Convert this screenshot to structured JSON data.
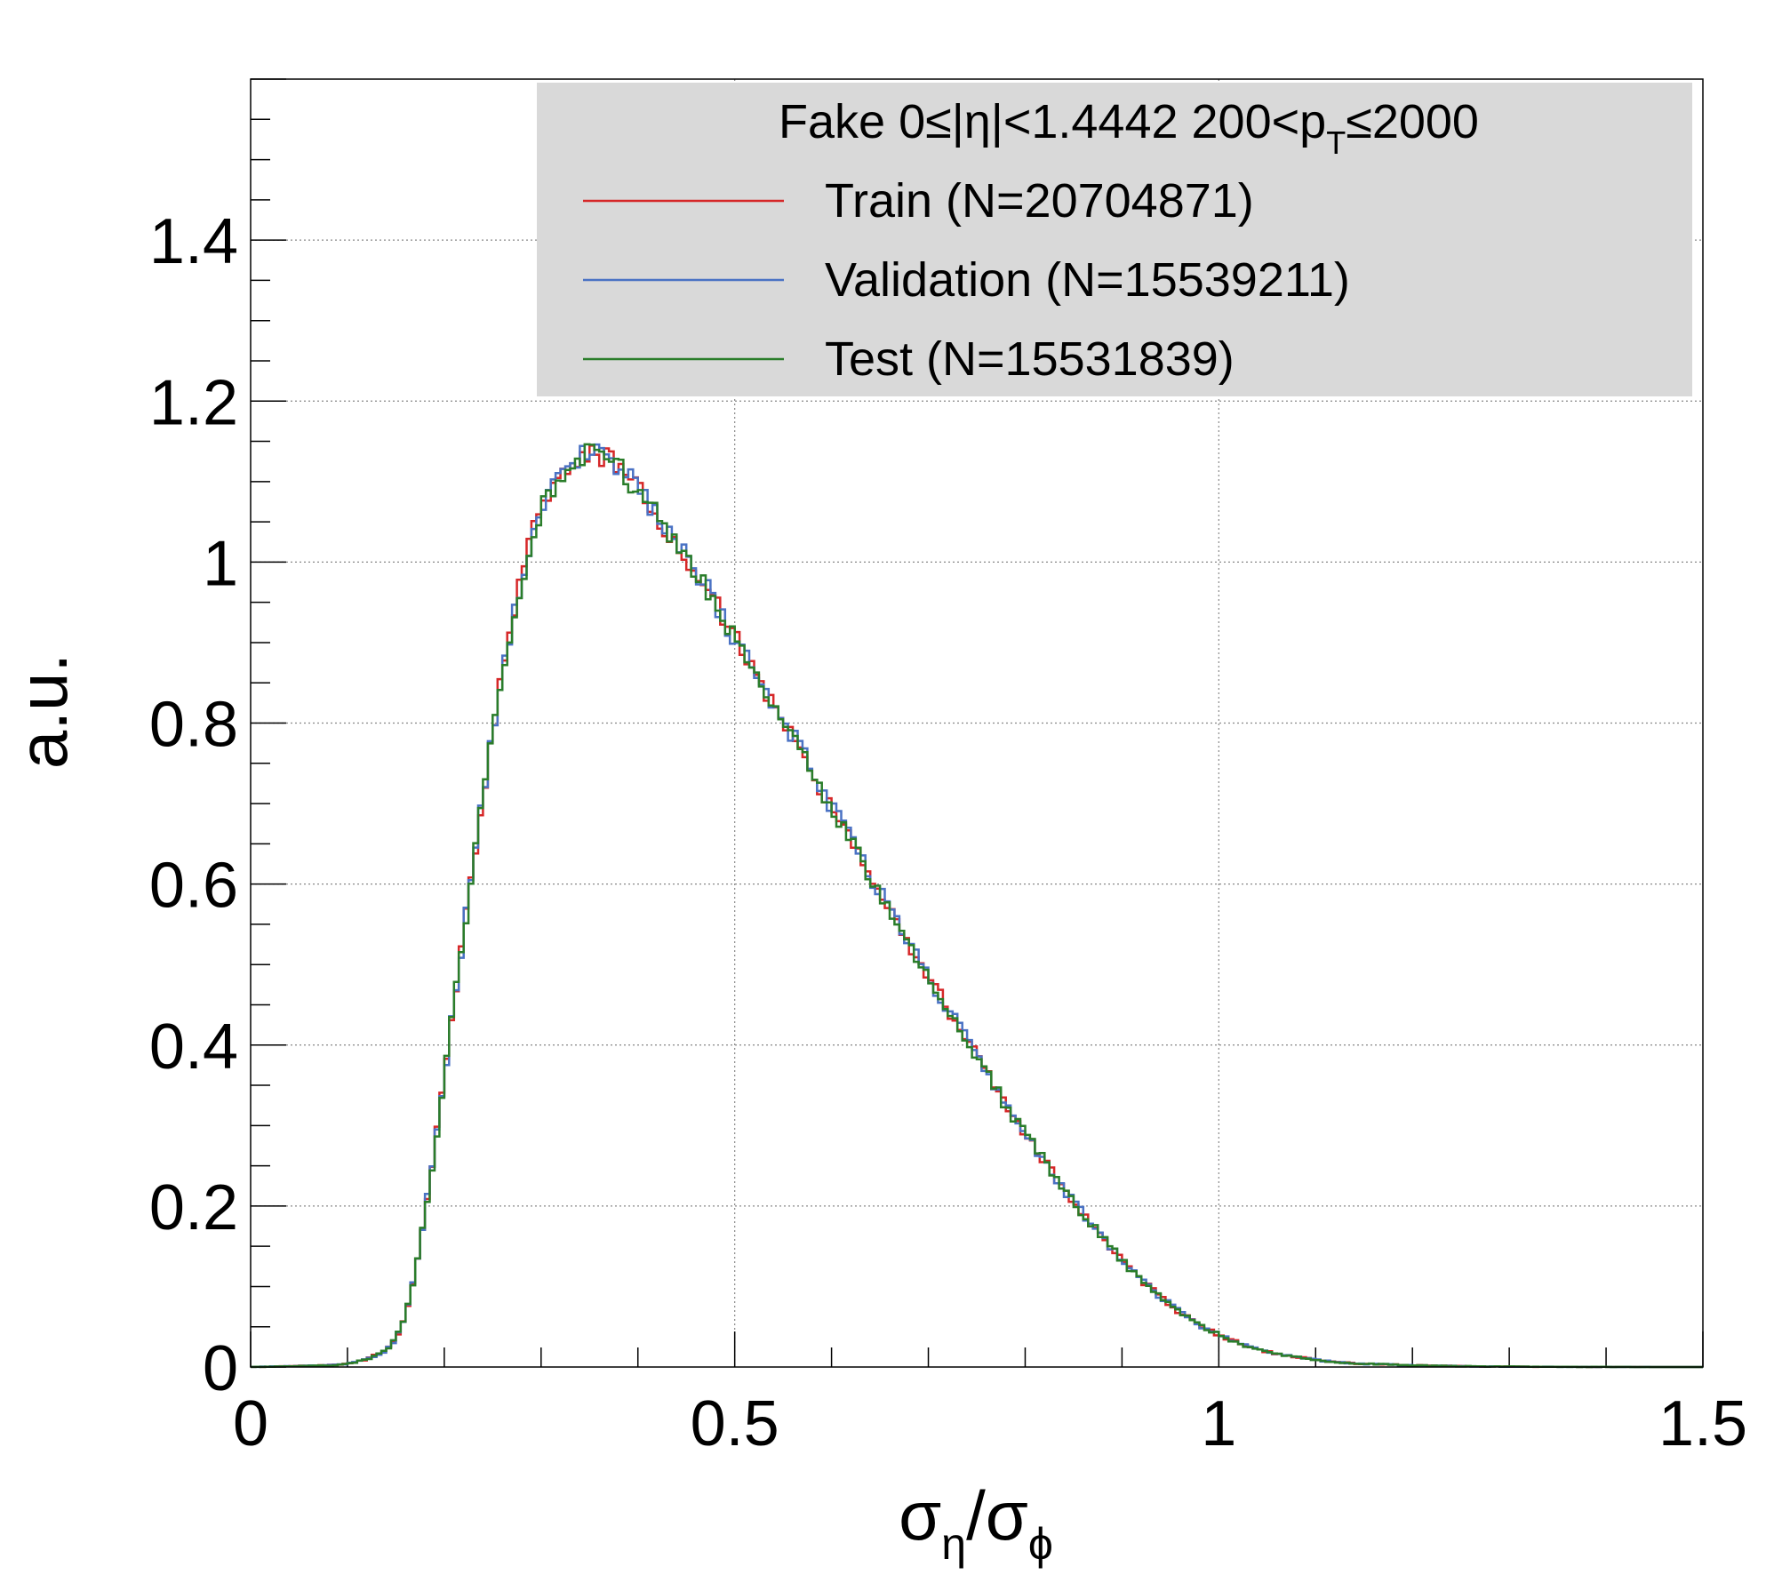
{
  "chart_data": {
    "type": "line",
    "style": "step-histogram",
    "title": "",
    "xlabel": {
      "base": "σ",
      "sub1": "η",
      "slash": "/",
      "base2": "σ",
      "sub2": "ϕ"
    },
    "ylabel": "a.u.",
    "xlim": [
      0,
      1.5
    ],
    "ylim": [
      0,
      1.6
    ],
    "grid": true,
    "x_ticks": [
      0,
      0.5,
      1,
      1.5
    ],
    "x_tick_labels": [
      "0",
      "0.5",
      "1",
      "1.5"
    ],
    "y_ticks": [
      0,
      0.2,
      0.4,
      0.6,
      0.8,
      1,
      1.2,
      1.4
    ],
    "y_tick_labels": [
      "0",
      "0.2",
      "0.4",
      "0.6",
      "0.8",
      "1",
      "1.2",
      "1.4"
    ],
    "legend": {
      "placement": "top-right",
      "header": {
        "pre": "Fake  0≤|η|<1.4442  200<p",
        "sub": "T",
        "post": "≤2000"
      },
      "entries": [
        "Train (N=20704871)",
        "Validation (N=15539211)",
        "Test (N=15531839)"
      ]
    },
    "series": [
      {
        "name": "Train (N=20704871)",
        "color": "#d62728"
      },
      {
        "name": "Validation (N=15539211)",
        "color": "#4a72c4"
      },
      {
        "name": "Test (N=15531839)",
        "color": "#2a7d2a"
      }
    ],
    "shape_points": {
      "x": [
        0.0,
        0.08,
        0.1,
        0.12,
        0.14,
        0.15,
        0.16,
        0.17,
        0.18,
        0.19,
        0.2,
        0.21,
        0.22,
        0.23,
        0.24,
        0.25,
        0.26,
        0.27,
        0.28,
        0.29,
        0.3,
        0.31,
        0.32,
        0.33,
        0.34,
        0.35,
        0.36,
        0.37,
        0.38,
        0.39,
        0.4,
        0.41,
        0.42,
        0.43,
        0.44,
        0.45,
        0.46,
        0.47,
        0.48,
        0.49,
        0.5,
        0.52,
        0.54,
        0.56,
        0.58,
        0.6,
        0.62,
        0.64,
        0.66,
        0.68,
        0.7,
        0.72,
        0.74,
        0.76,
        0.78,
        0.8,
        0.82,
        0.84,
        0.86,
        0.88,
        0.9,
        0.92,
        0.94,
        0.96,
        0.98,
        1.0,
        1.02,
        1.04,
        1.06,
        1.08,
        1.1,
        1.12,
        1.15,
        1.2,
        1.25,
        1.3,
        1.35,
        1.4,
        1.45,
        1.5
      ],
      "y": [
        0.0,
        0.002,
        0.004,
        0.01,
        0.02,
        0.035,
        0.065,
        0.115,
        0.19,
        0.27,
        0.36,
        0.45,
        0.54,
        0.625,
        0.71,
        0.79,
        0.86,
        0.925,
        0.98,
        1.03,
        1.065,
        1.09,
        1.11,
        1.125,
        1.132,
        1.136,
        1.135,
        1.13,
        1.12,
        1.105,
        1.09,
        1.075,
        1.06,
        1.04,
        1.02,
        1.005,
        0.99,
        0.97,
        0.95,
        0.925,
        0.905,
        0.865,
        0.825,
        0.785,
        0.74,
        0.695,
        0.655,
        0.61,
        0.57,
        0.525,
        0.485,
        0.445,
        0.405,
        0.365,
        0.325,
        0.29,
        0.255,
        0.22,
        0.19,
        0.16,
        0.132,
        0.108,
        0.087,
        0.068,
        0.052,
        0.04,
        0.03,
        0.022,
        0.016,
        0.012,
        0.009,
        0.006,
        0.004,
        0.002,
        0.001,
        0.0005,
        0.0002,
        0.0001,
        0.0,
        0.0
      ]
    }
  }
}
